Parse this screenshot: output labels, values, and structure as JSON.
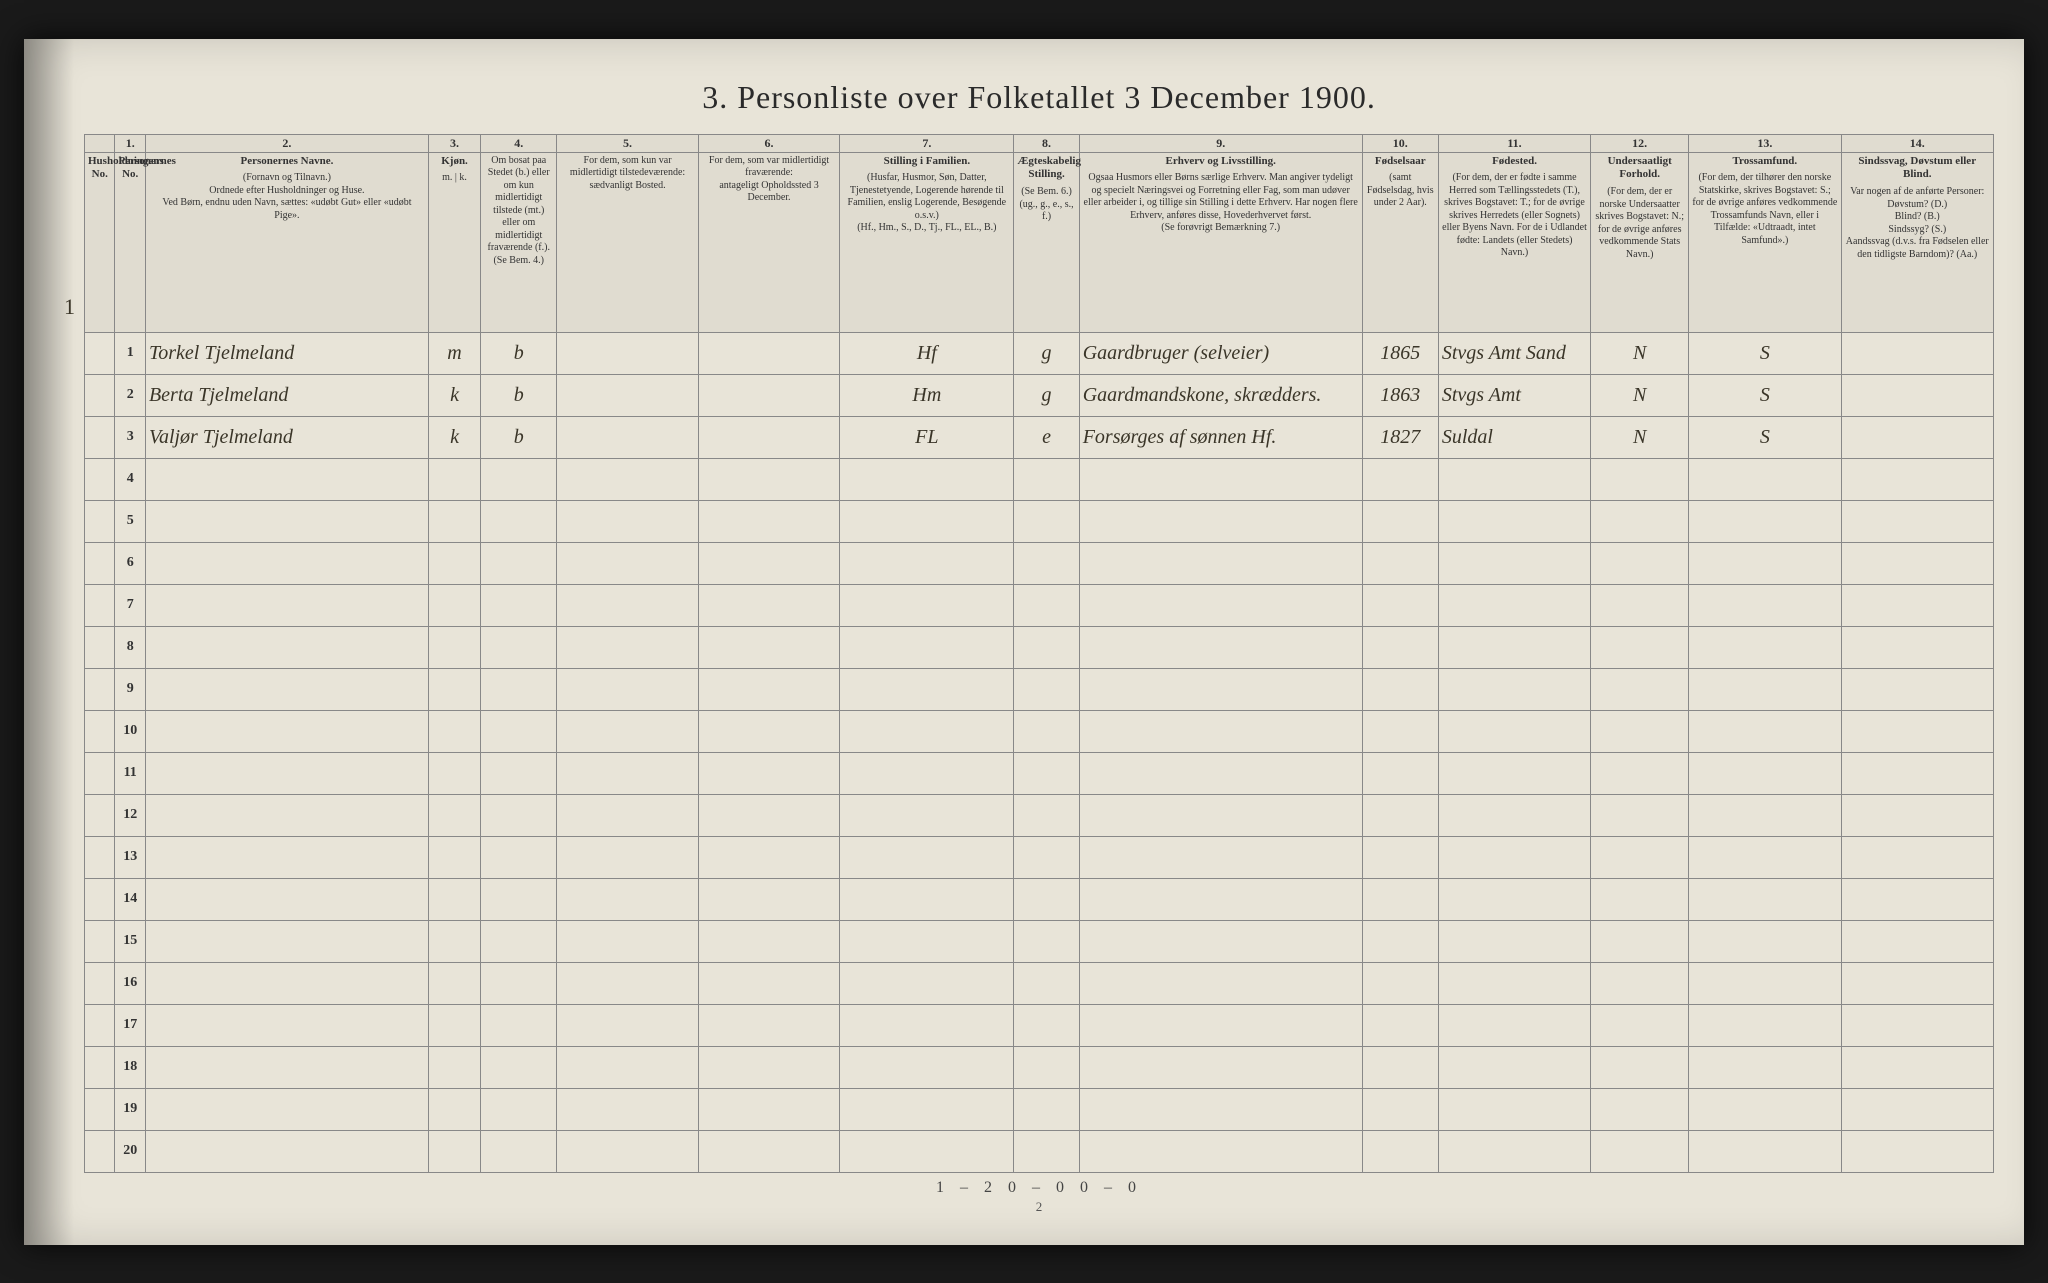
{
  "title": "3. Personliste over Folketallet 3 December 1900.",
  "columns": {
    "nums": [
      "",
      "1.",
      "2.",
      "3.",
      "4.",
      "5.",
      "6.",
      "7.",
      "8.",
      "9.",
      "10.",
      "11.",
      "12.",
      "13.",
      "14."
    ],
    "headers": [
      {
        "head": "Husholdningens No.",
        "body": ""
      },
      {
        "head": "Personernes No.",
        "body": ""
      },
      {
        "head": "Personernes Navne.",
        "body": "(Fornavn og Tilnavn.)\nOrdnede efter Husholdninger og Huse.\nVed Børn, endnu uden Navn, sættes: «udøbt Gut» eller «udøbt Pige»."
      },
      {
        "head": "Kjøn.",
        "body": "m. | k."
      },
      {
        "head": "",
        "body": "Om bosat paa Stedet (b.) eller om kun midlertidigt tilstede (mt.) eller om midlertidigt fraværende (f.). (Se Bem. 4.)"
      },
      {
        "head": "",
        "body": "For dem, som kun var midlertidigt tilstedeværende:\nsædvanligt Bosted."
      },
      {
        "head": "",
        "body": "For dem, som var midlertidigt fraværende:\nantageligt Opholdssted 3 December."
      },
      {
        "head": "Stilling i Familien.",
        "body": "(Husfar, Husmor, Søn, Datter, Tjenestetyende, Logerende hørende til Familien, enslig Logerende, Besøgende o.s.v.)\n(Hf., Hm., S., D., Tj., FL., EL., B.)"
      },
      {
        "head": "Ægteskabelig Stilling.",
        "body": "(Se Bem. 6.)\n(ug., g., e., s., f.)"
      },
      {
        "head": "Erhverv og Livsstilling.",
        "body": "Ogsaa Husmors eller Børns særlige Erhverv. Man angiver tydeligt og specielt Næringsvei og Forretning eller Fag, som man udøver eller arbeider i, og tillige sin Stilling i dette Erhverv. Har nogen flere Erhverv, anføres disse, Hovederhvervet først.\n(Se forøvrigt Bemærkning 7.)"
      },
      {
        "head": "Fødselsaar",
        "body": "(samt Fødselsdag, hvis under 2 Aar)."
      },
      {
        "head": "Fødested.",
        "body": "(For dem, der er fødte i samme Herred som Tællingsstedets (T.), skrives Bogstavet: T.; for de øvrige skrives Herredets (eller Sognets) eller Byens Navn. For de i Udlandet fødte: Landets (eller Stedets) Navn.)"
      },
      {
        "head": "Undersaatligt Forhold.",
        "body": "(For dem, der er norske Undersaatter skrives Bogstavet: N.; for de øvrige anføres vedkommende Stats Navn.)"
      },
      {
        "head": "Trossamfund.",
        "body": "(For dem, der tilhører den norske Statskirke, skrives Bogstavet: S.; for de øvrige anføres vedkommende Trossamfunds Navn, eller i Tilfælde: «Udtraadt, intet Samfund».)"
      },
      {
        "head": "Sindssvag, Døvstum eller Blind.",
        "body": "Var nogen af de anførte Personer:\nDøvstum? (D.)\nBlind? (B.)\nSindssyg? (S.)\nAandssvag (d.v.s. fra Fødselen eller den tidligste Barndom)? (Aa.)"
      }
    ],
    "widths": [
      28,
      28,
      260,
      48,
      70,
      130,
      130,
      160,
      60,
      260,
      70,
      140,
      90,
      140,
      140
    ]
  },
  "rows": [
    {
      "hh": "1",
      "n": "1",
      "name": "Torkel Tjelmeland",
      "sex": "m",
      "res": "b",
      "temp": "",
      "abs": "",
      "fam": "Hf",
      "mar": "g",
      "occ": "Gaardbruger (selveier)",
      "year": "1865",
      "place": "Stvgs Amt Sand",
      "nat": "N",
      "rel": "S",
      "dis": ""
    },
    {
      "hh": "",
      "n": "2",
      "name": "Berta Tjelmeland",
      "sex": "k",
      "res": "b",
      "temp": "",
      "abs": "",
      "fam": "Hm",
      "mar": "g",
      "occ": "Gaardmandskone, skrædders.",
      "year": "1863",
      "place": "Stvgs Amt",
      "nat": "N",
      "rel": "S",
      "dis": ""
    },
    {
      "hh": "",
      "n": "3",
      "name": "Valjør Tjelmeland",
      "sex": "k",
      "res": "b",
      "temp": "",
      "abs": "",
      "fam": "FL",
      "mar": "e",
      "occ": "Forsørges af sønnen Hf.",
      "year": "1827",
      "place": "Suldal",
      "nat": "N",
      "rel": "S",
      "dis": ""
    }
  ],
  "blank_rows": 17,
  "footnote": "1 – 2  0 – 0    0 – 0",
  "page_number": "2",
  "colors": {
    "paper": "#e8e4d8",
    "ink": "#2a2a2a",
    "handwriting": "#3a3528",
    "border": "#888"
  }
}
